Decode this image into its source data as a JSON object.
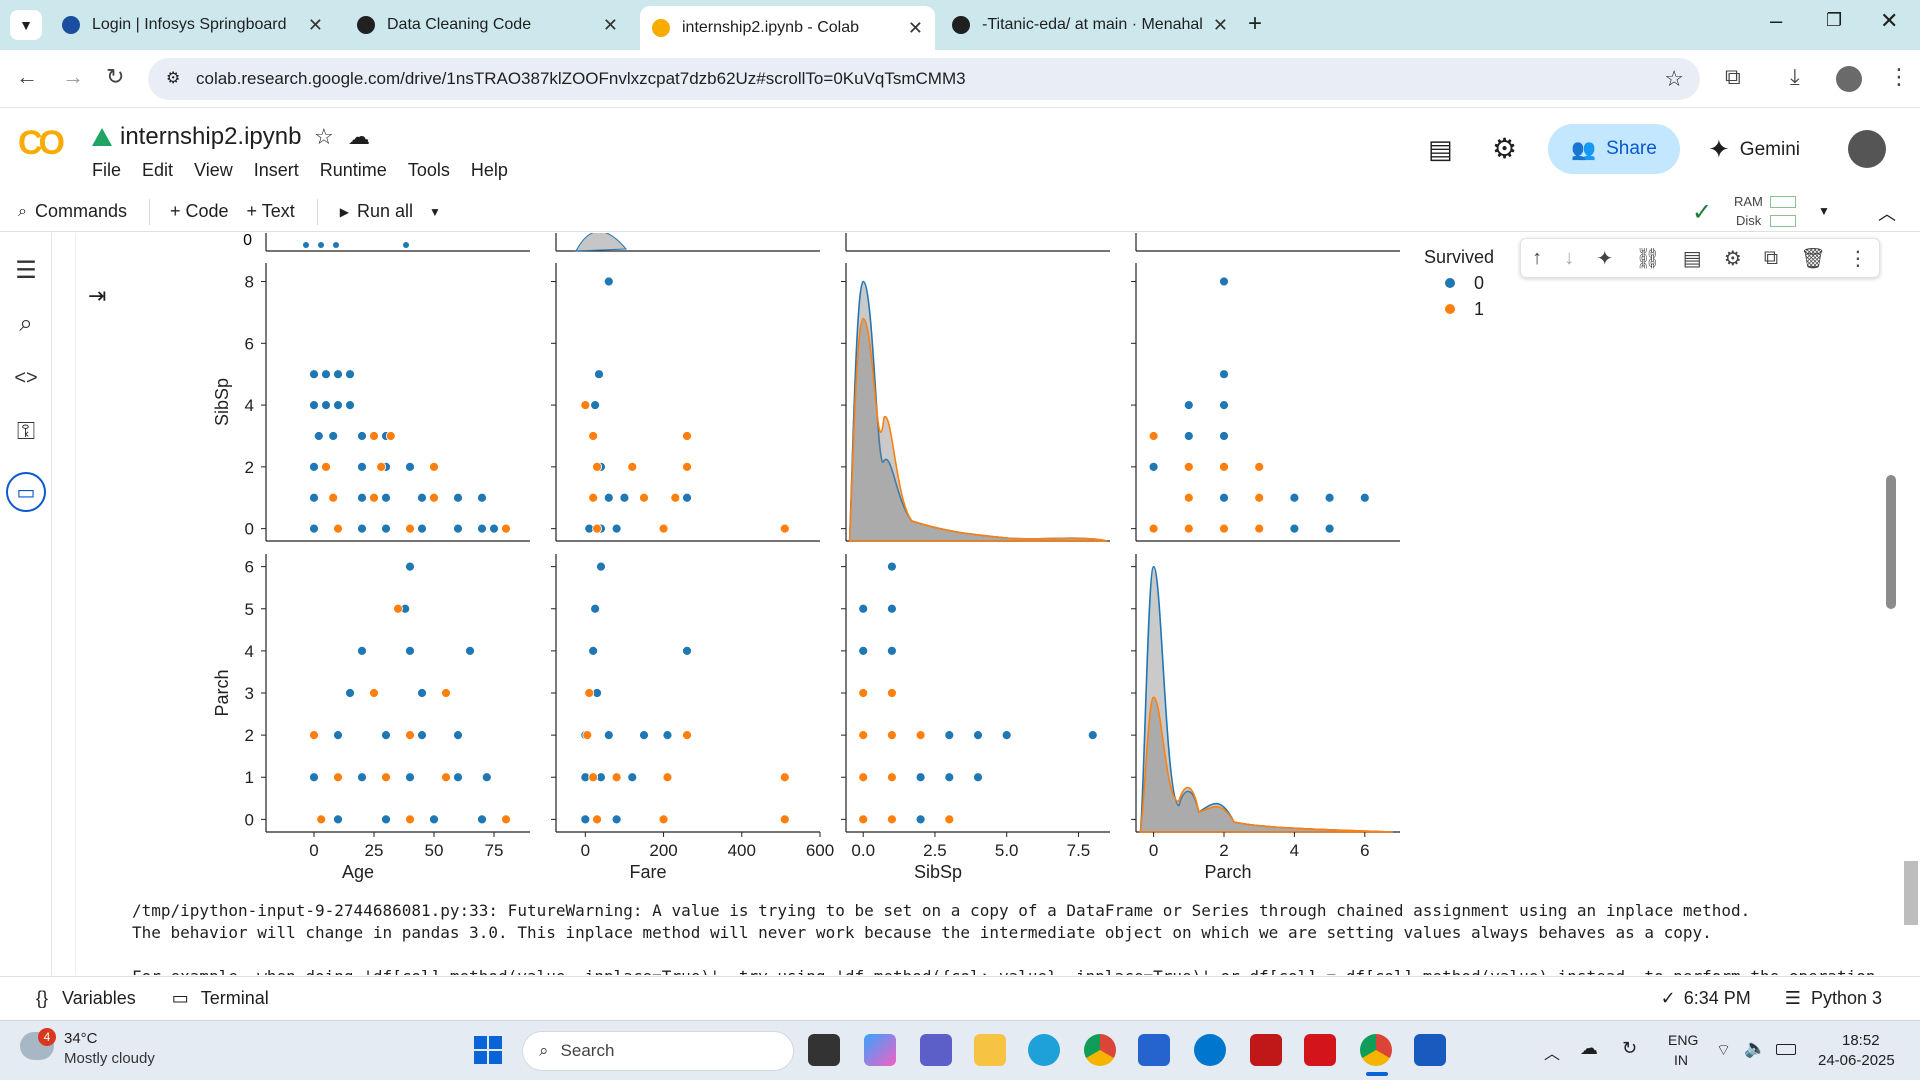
{
  "browser": {
    "tabs": [
      {
        "label": "Login | Infosys Springboard",
        "fav": "#1a4fa0"
      },
      {
        "label": "Data Cleaning Code",
        "fav": "#202020"
      },
      {
        "label": "internship2.ipynb - Colab",
        "fav": "#f9ab00"
      },
      {
        "label": "-Titanic-eda/ at main · Menahal",
        "fav": "#1f1f1f"
      }
    ],
    "url": "colab.research.google.com/drive/1nsTRAO387klZOOFnvlxzcpat7dzb62Uz#scrollTo=0KuVqTsmCMM3"
  },
  "colab": {
    "logo": "CO",
    "notebook_title": "internship2.ipynb",
    "menu": [
      "File",
      "Edit",
      "View",
      "Insert",
      "Runtime",
      "Tools",
      "Help"
    ],
    "share_label": "Share",
    "gemini_label": "Gemini",
    "toolbar": {
      "commands": "Commands",
      "code": "+ Code",
      "text": "+ Text",
      "run_all": "Run all"
    },
    "ram_label": "RAM",
    "disk_label": "Disk"
  },
  "chart_data": {
    "type": "scatter",
    "subtype": "pairplot-lower-rows",
    "legend": {
      "title": "Survived",
      "entries": [
        {
          "label": "0",
          "color": "#1f77b4"
        },
        {
          "label": "1",
          "color": "#ff7f0e"
        }
      ],
      "placement": "top-right"
    },
    "columns": [
      {
        "xlabel": "Age",
        "xlim": [
          -20,
          90
        ],
        "xticks": [
          0,
          25,
          50,
          75
        ]
      },
      {
        "xlabel": "Fare",
        "xlim": [
          -75,
          600
        ],
        "xticks": [
          0,
          200,
          400,
          600
        ]
      },
      {
        "xlabel": "SibSp",
        "xlim": [
          -0.6,
          8.6
        ],
        "xticks": [
          "0.0",
          "2.5",
          "5.0",
          "7.5"
        ]
      },
      {
        "xlabel": "Parch",
        "xlim": [
          -0.5,
          7
        ],
        "xticks": [
          0,
          2,
          4,
          6
        ]
      }
    ],
    "rows": [
      {
        "ylabel": "SibSp",
        "ylim": [
          -0.4,
          8.6
        ],
        "yticks": [
          0,
          2,
          4,
          6,
          8
        ]
      },
      {
        "ylabel": "Parch",
        "ylim": [
          -0.3,
          6.3
        ],
        "yticks": [
          0,
          1,
          2,
          3,
          4,
          5,
          6
        ]
      }
    ],
    "series": [
      {
        "name": "0",
        "color": "#1f77b4",
        "sibsp_vs_age": [
          [
            0,
            5
          ],
          [
            5,
            5
          ],
          [
            10,
            5
          ],
          [
            15,
            5
          ],
          [
            0,
            4
          ],
          [
            5,
            4
          ],
          [
            10,
            4
          ],
          [
            15,
            4
          ],
          [
            2,
            3
          ],
          [
            8,
            3
          ],
          [
            20,
            3
          ],
          [
            30,
            3
          ],
          [
            0,
            2
          ],
          [
            20,
            2
          ],
          [
            30,
            2
          ],
          [
            40,
            2
          ],
          [
            50,
            2
          ],
          [
            0,
            1
          ],
          [
            20,
            1
          ],
          [
            30,
            1
          ],
          [
            45,
            1
          ],
          [
            60,
            1
          ],
          [
            70,
            1
          ],
          [
            0,
            0
          ],
          [
            20,
            0
          ],
          [
            30,
            0
          ],
          [
            45,
            0
          ],
          [
            60,
            0
          ],
          [
            70,
            0
          ],
          [
            75,
            0
          ]
        ],
        "sibsp_vs_fare": [
          [
            60,
            8
          ],
          [
            35,
            5
          ],
          [
            25,
            4
          ],
          [
            20,
            3
          ],
          [
            40,
            2
          ],
          [
            60,
            1
          ],
          [
            100,
            1
          ],
          [
            260,
            1
          ],
          [
            10,
            0
          ],
          [
            40,
            0
          ],
          [
            80,
            0
          ]
        ],
        "sibsp_vs_parch": [
          [
            2,
            8
          ],
          [
            2,
            5
          ],
          [
            1,
            4
          ],
          [
            2,
            4
          ],
          [
            1,
            3
          ],
          [
            2,
            3
          ],
          [
            0,
            2
          ],
          [
            1,
            2
          ],
          [
            2,
            1
          ],
          [
            3,
            1
          ],
          [
            4,
            1
          ],
          [
            5,
            1
          ],
          [
            6,
            1
          ],
          [
            0,
            0
          ],
          [
            4,
            0
          ],
          [
            5,
            0
          ]
        ],
        "parch_vs_age": [
          [
            40,
            6
          ],
          [
            38,
            5
          ],
          [
            20,
            4
          ],
          [
            40,
            4
          ],
          [
            65,
            4
          ],
          [
            15,
            3
          ],
          [
            45,
            3
          ],
          [
            0,
            2
          ],
          [
            10,
            2
          ],
          [
            30,
            2
          ],
          [
            45,
            2
          ],
          [
            60,
            2
          ],
          [
            0,
            1
          ],
          [
            20,
            1
          ],
          [
            40,
            1
          ],
          [
            60,
            1
          ],
          [
            72,
            1
          ],
          [
            10,
            0
          ],
          [
            30,
            0
          ],
          [
            50,
            0
          ],
          [
            70,
            0
          ]
        ],
        "parch_vs_fare": [
          [
            40,
            6
          ],
          [
            25,
            5
          ],
          [
            20,
            4
          ],
          [
            260,
            4
          ],
          [
            30,
            3
          ],
          [
            0,
            2
          ],
          [
            60,
            2
          ],
          [
            150,
            2
          ],
          [
            210,
            2
          ],
          [
            0,
            1
          ],
          [
            40,
            1
          ],
          [
            120,
            1
          ],
          [
            0,
            0
          ],
          [
            30,
            0
          ],
          [
            80,
            0
          ]
        ],
        "parch_vs_sibsp": [
          [
            1,
            6
          ],
          [
            0,
            5
          ],
          [
            1,
            5
          ],
          [
            0,
            4
          ],
          [
            1,
            4
          ],
          [
            2,
            2
          ],
          [
            3,
            2
          ],
          [
            4,
            2
          ],
          [
            5,
            2
          ],
          [
            8,
            2
          ],
          [
            2,
            1
          ],
          [
            3,
            1
          ],
          [
            4,
            1
          ],
          [
            0,
            0
          ],
          [
            2,
            0
          ]
        ],
        "kde_sibsp_peak": 8.0,
        "kde_parch_peak": 6.0
      },
      {
        "name": "1",
        "color": "#ff7f0e",
        "sibsp_vs_age": [
          [
            25,
            3
          ],
          [
            32,
            3
          ],
          [
            5,
            2
          ],
          [
            28,
            2
          ],
          [
            50,
            2
          ],
          [
            8,
            1
          ],
          [
            25,
            1
          ],
          [
            50,
            1
          ],
          [
            10,
            0
          ],
          [
            40,
            0
          ],
          [
            80,
            0
          ]
        ],
        "sibsp_vs_fare": [
          [
            0,
            4
          ],
          [
            20,
            3
          ],
          [
            260,
            3
          ],
          [
            30,
            2
          ],
          [
            120,
            2
          ],
          [
            260,
            2
          ],
          [
            20,
            1
          ],
          [
            150,
            1
          ],
          [
            230,
            1
          ],
          [
            30,
            0
          ],
          [
            200,
            0
          ],
          [
            510,
            0
          ]
        ],
        "sibsp_vs_parch": [
          [
            0,
            3
          ],
          [
            1,
            2
          ],
          [
            2,
            2
          ],
          [
            3,
            2
          ],
          [
            1,
            1
          ],
          [
            3,
            1
          ],
          [
            0,
            0
          ],
          [
            1,
            0
          ],
          [
            2,
            0
          ],
          [
            3,
            0
          ]
        ],
        "parch_vs_age": [
          [
            35,
            5
          ],
          [
            25,
            3
          ],
          [
            55,
            3
          ],
          [
            0,
            2
          ],
          [
            40,
            2
          ],
          [
            10,
            1
          ],
          [
            30,
            1
          ],
          [
            55,
            1
          ],
          [
            3,
            0
          ],
          [
            40,
            0
          ],
          [
            80,
            0
          ]
        ],
        "parch_vs_fare": [
          [
            10,
            3
          ],
          [
            5,
            2
          ],
          [
            260,
            2
          ],
          [
            20,
            1
          ],
          [
            80,
            1
          ],
          [
            210,
            1
          ],
          [
            510,
            1
          ],
          [
            30,
            0
          ],
          [
            200,
            0
          ],
          [
            510,
            0
          ]
        ],
        "parch_vs_sibsp": [
          [
            0,
            3
          ],
          [
            1,
            3
          ],
          [
            0,
            2
          ],
          [
            1,
            2
          ],
          [
            2,
            2
          ],
          [
            0,
            1
          ],
          [
            1,
            1
          ],
          [
            0,
            0
          ],
          [
            1,
            0
          ],
          [
            3,
            0
          ]
        ],
        "kde_sibsp_peak": 6.8,
        "kde_parch_peak": 2.9
      }
    ],
    "yticks_top_row_partial": [
      0
    ]
  },
  "output": {
    "line1": "/tmp/ipython-input-9-2744686081.py:33: FutureWarning: A value is trying to be set on a copy of a DataFrame or Series through chained assignment using an inplace method.",
    "line2": "The behavior will change in pandas 3.0. This inplace method will never work because the intermediate object on which we are setting values always behaves as a copy.",
    "line3": "For example, when doing 'df[col].method(value, inplace=True)', try using 'df.method({col: value}, inplace=True)' or df[col] = df[col].method(value) instead, to perform the operation"
  },
  "status": {
    "variables": "Variables",
    "terminal": "Terminal",
    "time": "6:34 PM",
    "runtime": "Python 3"
  },
  "taskbar": {
    "temp": "34°C",
    "weather": "Mostly cloudy",
    "search": "Search",
    "lang1": "ENG",
    "lang2": "IN",
    "clock": "18:52",
    "date": "24-06-2025",
    "badge": "4"
  }
}
